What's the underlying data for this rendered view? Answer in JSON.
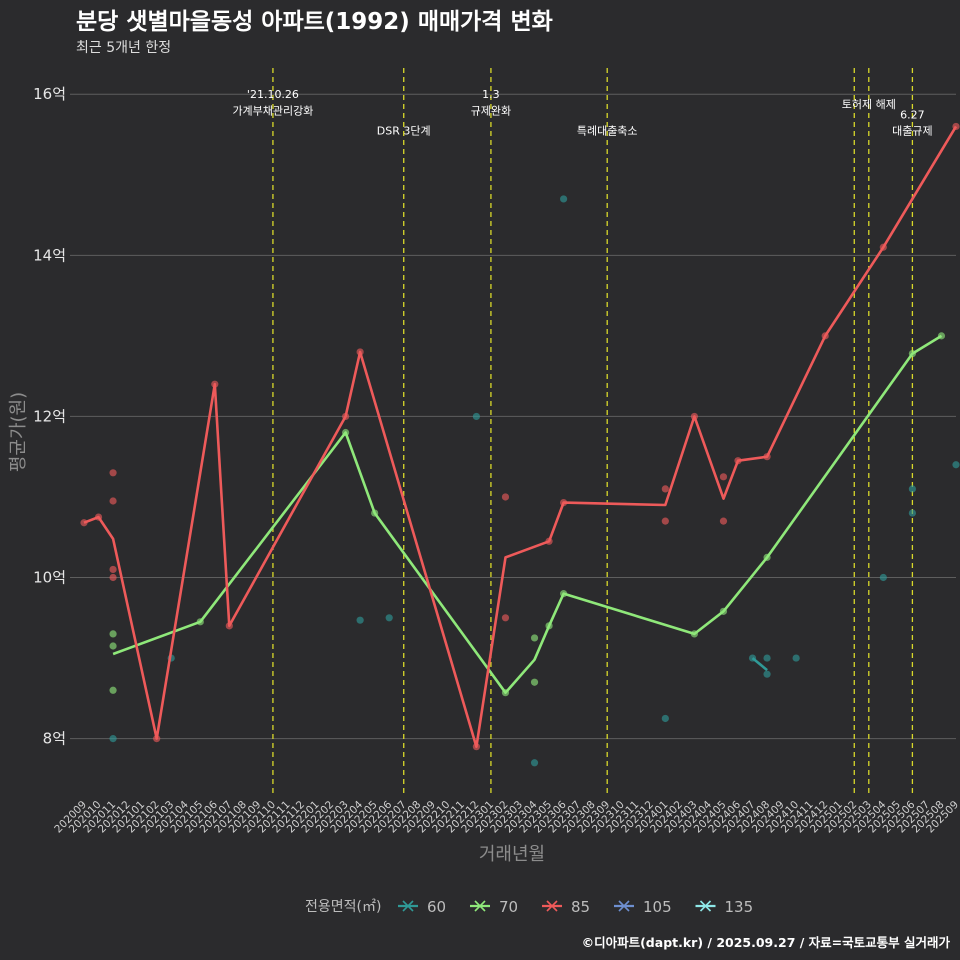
{
  "colors": {
    "background": "#2b2b2d",
    "60": "#2f9a97",
    "70": "#8fe87a",
    "85": "#ee5a5a",
    "105": "#6e8fd0",
    "135": "#8ee8e8",
    "event_line": "#d9d92a"
  },
  "chart_data": {
    "type": "line",
    "title": "분당 샛별마을동성 아파트(1992) 매매가격 변화",
    "subtitle": "최근 5개년 한정",
    "xlabel": "거래년월",
    "ylabel": "평균가(원)",
    "caption": "©디아파트(dapt.kr) / 2025.09.27 / 자료=국토교통부 실거래가",
    "ylim": [
      7.3,
      16.4
    ],
    "yticks": [
      8,
      10,
      12,
      14,
      16
    ],
    "ytick_labels": [
      "8억",
      "10억",
      "12억",
      "14억",
      "16억"
    ],
    "x_categories": [
      "202009",
      "202010",
      "202011",
      "202012",
      "202101",
      "202102",
      "202103",
      "202104",
      "202105",
      "202106",
      "202107",
      "202108",
      "202109",
      "202110",
      "202111",
      "202112",
      "202201",
      "202202",
      "202203",
      "202204",
      "202205",
      "202206",
      "202207",
      "202208",
      "202209",
      "202210",
      "202211",
      "202212",
      "202301",
      "202302",
      "202303",
      "202304",
      "202305",
      "202306",
      "202307",
      "202308",
      "202309",
      "202310",
      "202311",
      "202312",
      "202401",
      "202402",
      "202403",
      "202404",
      "202405",
      "202406",
      "202407",
      "202408",
      "202409",
      "202410",
      "202411",
      "202412",
      "202501",
      "202502",
      "202503",
      "202504",
      "202505",
      "202506",
      "202507",
      "202508",
      "202509"
    ],
    "legend_title": "전용면적(㎡)",
    "legend": [
      "60",
      "70",
      "85",
      "105",
      "135"
    ],
    "series": [
      {
        "name": "60",
        "line": [
          [
            "202407",
            9.0
          ],
          [
            "202408",
            8.85
          ]
        ],
        "points": [
          [
            "202011",
            8.0
          ],
          [
            "202103",
            9.0
          ],
          [
            "202204",
            9.47
          ],
          [
            "202206",
            9.5
          ],
          [
            "202212",
            12.0
          ],
          [
            "202304",
            7.7
          ],
          [
            "202306",
            14.7
          ],
          [
            "202401",
            8.25
          ],
          [
            "202407",
            9.0
          ],
          [
            "202408",
            9.0
          ],
          [
            "202408",
            8.8
          ],
          [
            "202410",
            9.0
          ],
          [
            "202504",
            10.0
          ],
          [
            "202506",
            11.1
          ],
          [
            "202506",
            10.8
          ],
          [
            "202509",
            11.4
          ]
        ]
      },
      {
        "name": "70",
        "line": [
          [
            "202011",
            9.05
          ],
          [
            "202105",
            9.45
          ],
          [
            "202203",
            11.8
          ],
          [
            "202205",
            10.8
          ],
          [
            "202302",
            8.57
          ],
          [
            "202304",
            8.98
          ],
          [
            "202305",
            9.4
          ],
          [
            "202306",
            9.8
          ],
          [
            "202403",
            9.3
          ],
          [
            "202405",
            9.58
          ],
          [
            "202408",
            10.25
          ],
          [
            "202506",
            12.78
          ],
          [
            "202508",
            13.0
          ]
        ],
        "points": [
          [
            "202011",
            9.3
          ],
          [
            "202011",
            9.15
          ],
          [
            "202011",
            8.6
          ],
          [
            "202105",
            9.45
          ],
          [
            "202203",
            11.8
          ],
          [
            "202205",
            10.8
          ],
          [
            "202302",
            8.57
          ],
          [
            "202304",
            9.25
          ],
          [
            "202304",
            8.7
          ],
          [
            "202305",
            9.4
          ],
          [
            "202306",
            9.8
          ],
          [
            "202403",
            9.3
          ],
          [
            "202405",
            9.58
          ],
          [
            "202408",
            10.25
          ],
          [
            "202506",
            12.78
          ],
          [
            "202508",
            13.0
          ]
        ]
      },
      {
        "name": "85",
        "line": [
          [
            "202009",
            10.68
          ],
          [
            "202010",
            10.75
          ],
          [
            "202011",
            10.48
          ],
          [
            "202102",
            8.0
          ],
          [
            "202106",
            12.4
          ],
          [
            "202107",
            9.4
          ],
          [
            "202203",
            12.0
          ],
          [
            "202204",
            12.8
          ],
          [
            "202212",
            7.9
          ],
          [
            "202302",
            10.25
          ],
          [
            "202305",
            10.45
          ],
          [
            "202306",
            10.93
          ],
          [
            "202401",
            10.9
          ],
          [
            "202403",
            12.0
          ],
          [
            "202405",
            10.98
          ],
          [
            "202406",
            11.45
          ],
          [
            "202408",
            11.5
          ],
          [
            "202412",
            13.0
          ],
          [
            "202504",
            14.1
          ],
          [
            "202509",
            15.6
          ]
        ],
        "points": [
          [
            "202009",
            10.68
          ],
          [
            "202010",
            10.75
          ],
          [
            "202011",
            11.3
          ],
          [
            "202011",
            10.95
          ],
          [
            "202011",
            10.1
          ],
          [
            "202011",
            10.0
          ],
          [
            "202102",
            8.0
          ],
          [
            "202106",
            12.4
          ],
          [
            "202107",
            9.4
          ],
          [
            "202203",
            12.0
          ],
          [
            "202204",
            12.8
          ],
          [
            "202212",
            7.9
          ],
          [
            "202302",
            11.0
          ],
          [
            "202302",
            9.5
          ],
          [
            "202305",
            10.45
          ],
          [
            "202306",
            10.93
          ],
          [
            "202401",
            11.1
          ],
          [
            "202401",
            10.7
          ],
          [
            "202403",
            12.0
          ],
          [
            "202405",
            11.25
          ],
          [
            "202405",
            10.7
          ],
          [
            "202406",
            11.45
          ],
          [
            "202408",
            11.5
          ],
          [
            "202412",
            13.0
          ],
          [
            "202504",
            14.1
          ],
          [
            "202509",
            15.6
          ]
        ]
      },
      {
        "name": "105",
        "line": [],
        "points": []
      },
      {
        "name": "135",
        "line": [],
        "points": []
      }
    ],
    "events": [
      {
        "x": "202110",
        "lines": [
          "'21.10.26",
          "가계부채관리강화"
        ],
        "y": [
          16.0,
          15.8
        ]
      },
      {
        "x": "202207",
        "lines": [
          "DSR 3단계"
        ],
        "y": [
          15.55
        ]
      },
      {
        "x": "202301",
        "lines": [
          "1.3",
          "규제완화"
        ],
        "y": [
          16.0,
          15.8
        ]
      },
      {
        "x": "202309",
        "lines": [
          "특례대출축소"
        ],
        "y": [
          15.55
        ]
      },
      {
        "x": "202502",
        "lines": [],
        "y": []
      },
      {
        "x": "202503",
        "lines": [
          "토허제 해제"
        ],
        "y": [
          15.88
        ]
      },
      {
        "x": "202506",
        "lines": [
          "6.27",
          "대출규제"
        ],
        "y": [
          15.75,
          15.55
        ]
      }
    ]
  }
}
